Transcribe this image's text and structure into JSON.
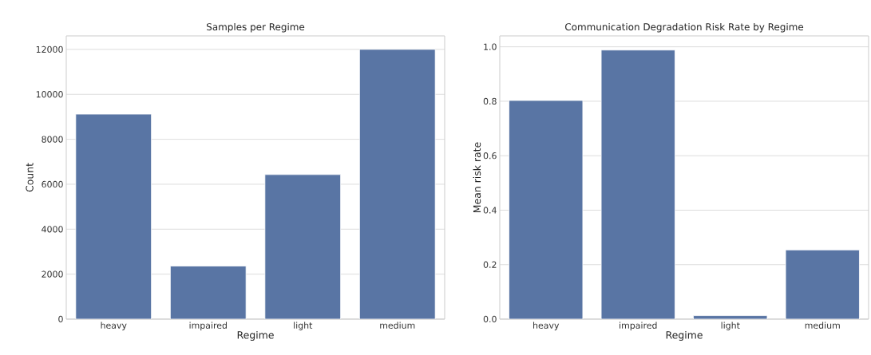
{
  "chart_data": [
    {
      "type": "bar",
      "title": "Samples per Regime",
      "xlabel": "Regime",
      "ylabel": "Count",
      "categories": [
        "heavy",
        "impaired",
        "light",
        "medium"
      ],
      "values": [
        9120,
        2360,
        6430,
        12000
      ],
      "color": "#5975a4",
      "ylim": [
        0,
        12600
      ],
      "yticks": [
        0,
        2000,
        4000,
        6000,
        8000,
        10000,
        12000
      ],
      "grid": "y"
    },
    {
      "type": "bar",
      "title": "Communication Degradation Risk Rate by Regime",
      "xlabel": "Regime",
      "ylabel": "Mean risk rate",
      "categories": [
        "heavy",
        "impaired",
        "light",
        "medium"
      ],
      "values": [
        0.803,
        0.988,
        0.013,
        0.254
      ],
      "color": "#5975a4",
      "ylim": [
        0,
        1.04
      ],
      "yticks": [
        {
          "value": 0,
          "label": "0.0"
        },
        {
          "value": 0.2,
          "label": "0.2"
        },
        {
          "value": 0.4,
          "label": "0.4"
        },
        {
          "value": 0.6,
          "label": "0.6"
        },
        {
          "value": 0.8,
          "label": "0.8"
        },
        {
          "value": 1.0,
          "label": "1.0"
        }
      ],
      "grid": "y"
    }
  ]
}
